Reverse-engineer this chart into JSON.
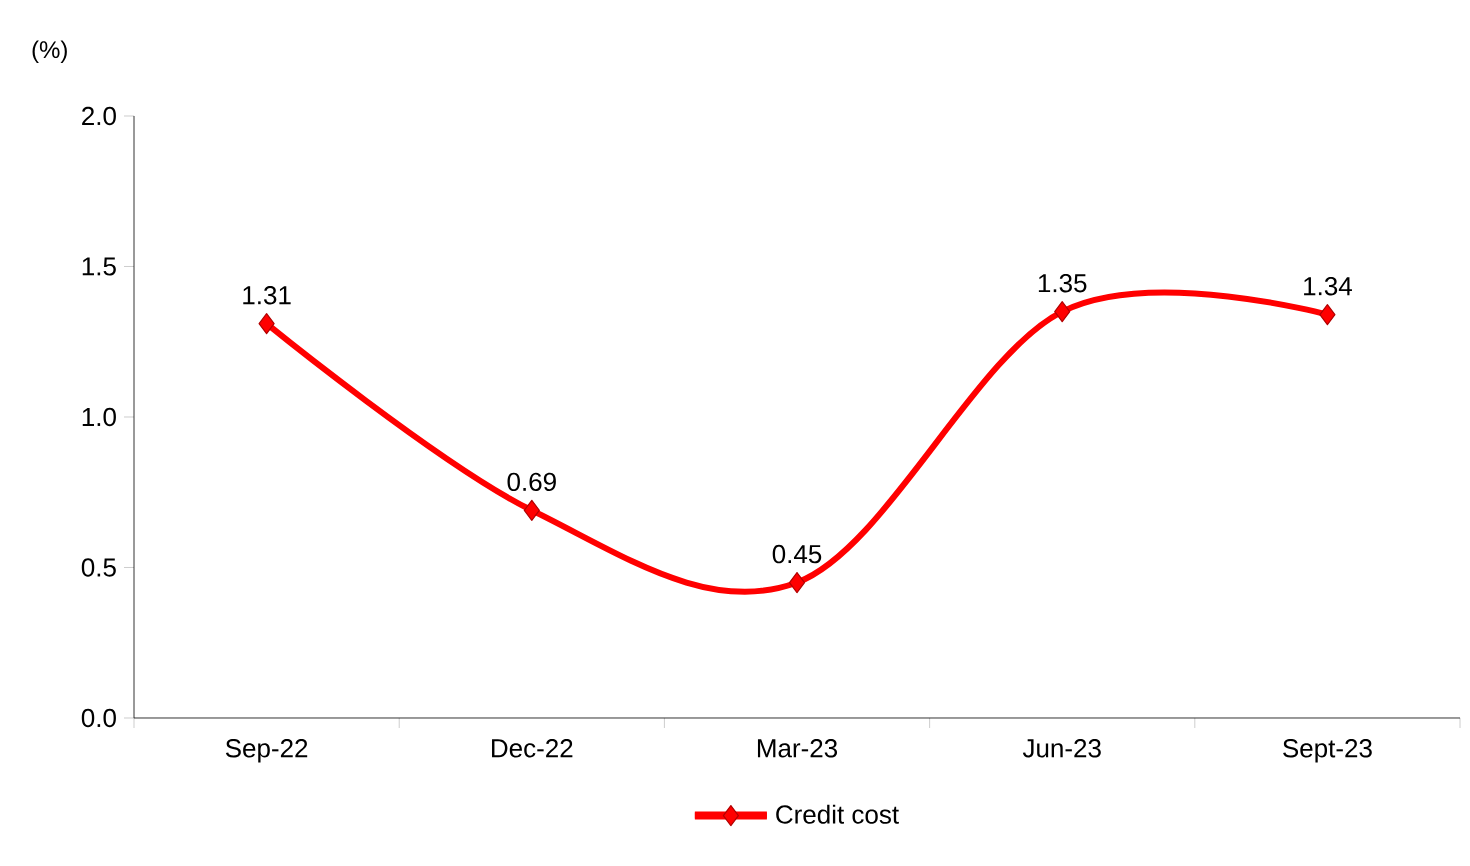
{
  "chart_data": {
    "type": "line",
    "ylabel": "(%)",
    "categories": [
      "Sep-22",
      "Dec-22",
      "Mar-23",
      "Jun-23",
      "Sept-23"
    ],
    "series": [
      {
        "name": "Credit cost",
        "color": "#ff0000",
        "values": [
          1.31,
          0.69,
          0.45,
          1.35,
          1.34
        ]
      }
    ],
    "ylim": [
      0,
      2
    ],
    "yticks": [
      {
        "value": 0,
        "label": "0.0"
      },
      {
        "value": 0.5,
        "label": "0.5"
      },
      {
        "value": 1,
        "label": "1.0"
      },
      {
        "value": 1.5,
        "label": "1.5"
      },
      {
        "value": 2,
        "label": "2.0"
      }
    ],
    "marker": "diamond",
    "line_style": "solid",
    "data_labels": true,
    "legend": "bottom",
    "grid": false
  }
}
